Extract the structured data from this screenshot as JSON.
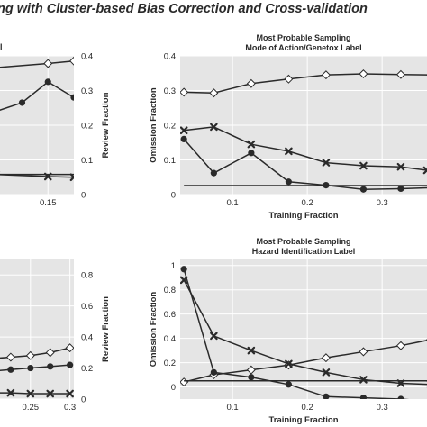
{
  "figure": {
    "title": "ng with Cluster-based Bias Correction and Cross-validation",
    "stray_label": "l"
  },
  "colors": {
    "plot_bg": "#e5e5e5",
    "grid": "#ffffff",
    "ink": "#2a2a2a"
  },
  "chart_data": [
    {
      "id": "top_left",
      "type": "line",
      "title": "",
      "xlabel": "",
      "ylabel": "",
      "y2label": "Review Fraction",
      "xlim": [
        0.095,
        0.175
      ],
      "y2lim": [
        0,
        0.4
      ],
      "x_ticks": [
        "0.15"
      ],
      "y2_ticks": [
        "0",
        "0.1",
        "0.2",
        "0.3",
        "0.4"
      ],
      "grid": true,
      "series": [
        {
          "marker": "diamond",
          "axis": "right",
          "x": [
            0.095,
            0.1,
            0.15,
            0.175
          ],
          "y": [
            0.37,
            0.366,
            0.378,
            0.385
          ]
        },
        {
          "marker": "circle",
          "axis": "right",
          "x": [
            0.095,
            0.1,
            0.125,
            0.15,
            0.175
          ],
          "y": [
            0.22,
            0.24,
            0.265,
            0.325,
            0.28
          ]
        },
        {
          "marker": "x",
          "axis": "right",
          "x": [
            0.095,
            0.1,
            0.15,
            0.175
          ],
          "y": [
            0.06,
            0.058,
            0.052,
            0.05
          ]
        },
        {
          "marker": "none",
          "axis": "right",
          "x": [
            0.095,
            0.175
          ],
          "y": [
            0.058,
            0.058
          ]
        }
      ]
    },
    {
      "id": "top_right",
      "type": "line",
      "title": "Most Probable Sampling",
      "subtitle": "Mode of Action/Genetox Label",
      "xlabel": "Training Fraction",
      "ylabel": "Omission Fraction",
      "xlim": [
        0.03,
        0.36
      ],
      "ylim": [
        0,
        0.4
      ],
      "x_ticks": [
        "0.1",
        "0.2",
        "0.3"
      ],
      "y_ticks": [
        "0",
        "0.1",
        "0.2",
        "0.3",
        "0.4"
      ],
      "grid": true,
      "series": [
        {
          "marker": "diamond",
          "x": [
            0.035,
            0.075,
            0.125,
            0.175,
            0.225,
            0.275,
            0.325,
            0.365
          ],
          "y": [
            0.295,
            0.293,
            0.32,
            0.333,
            0.345,
            0.348,
            0.346,
            0.345
          ]
        },
        {
          "marker": "x",
          "x": [
            0.035,
            0.075,
            0.125,
            0.175,
            0.225,
            0.275,
            0.325,
            0.36
          ],
          "y": [
            0.185,
            0.195,
            0.145,
            0.125,
            0.092,
            0.083,
            0.08,
            0.07
          ]
        },
        {
          "marker": "circle",
          "x": [
            0.035,
            0.075,
            0.125,
            0.175,
            0.225,
            0.275,
            0.325,
            0.365
          ],
          "y": [
            0.16,
            0.062,
            0.12,
            0.037,
            0.027,
            0.015,
            0.017,
            0.02
          ]
        },
        {
          "marker": "none",
          "x": [
            0.035,
            0.365
          ],
          "y": [
            0.026,
            0.026
          ]
        }
      ]
    },
    {
      "id": "bottom_left",
      "type": "line",
      "title": "",
      "xlabel": "",
      "ylabel": "",
      "y2label": "Review Fraction",
      "xlim": [
        0.2,
        0.305
      ],
      "y2lim": [
        0,
        0.9
      ],
      "x_ticks": [
        "0.25",
        "0.3"
      ],
      "y2_ticks": [
        "0",
        "0.2",
        "0.4",
        "0.6",
        "0.8"
      ],
      "grid": true,
      "series": [
        {
          "marker": "diamond",
          "axis": "right",
          "x": [
            0.2,
            0.225,
            0.25,
            0.275,
            0.3
          ],
          "y": [
            0.26,
            0.27,
            0.28,
            0.3,
            0.33
          ]
        },
        {
          "marker": "circle",
          "axis": "right",
          "x": [
            0.2,
            0.225,
            0.25,
            0.275,
            0.3
          ],
          "y": [
            0.18,
            0.19,
            0.2,
            0.21,
            0.22
          ]
        },
        {
          "marker": "x",
          "axis": "right",
          "x": [
            0.2,
            0.225,
            0.25,
            0.275,
            0.3
          ],
          "y": [
            0.04,
            0.04,
            0.035,
            0.035,
            0.035
          ]
        }
      ]
    },
    {
      "id": "bottom_right",
      "type": "line",
      "title": "Most Probable Sampling",
      "subtitle": "Hazard Identification Label",
      "xlabel": "Training Fraction",
      "ylabel": "Omission Fraction",
      "xlim": [
        0.03,
        0.36
      ],
      "ylim": [
        -0.1,
        1.05
      ],
      "x_ticks": [
        "0.1",
        "0.2",
        "0.3"
      ],
      "y_ticks": [
        "0",
        "0.2",
        "0.4",
        "0.6",
        "0.8",
        "1"
      ],
      "grid": true,
      "series": [
        {
          "marker": "diamond",
          "x": [
            0.035,
            0.075,
            0.125,
            0.175,
            0.225,
            0.275,
            0.325,
            0.365
          ],
          "y": [
            0.04,
            0.1,
            0.14,
            0.18,
            0.24,
            0.29,
            0.34,
            0.39
          ]
        },
        {
          "marker": "x",
          "x": [
            0.035,
            0.075,
            0.125,
            0.175,
            0.225,
            0.275,
            0.325,
            0.365
          ],
          "y": [
            0.88,
            0.42,
            0.3,
            0.19,
            0.12,
            0.06,
            0.03,
            0.02
          ]
        },
        {
          "marker": "circle",
          "x": [
            0.035,
            0.075,
            0.125,
            0.175,
            0.225,
            0.275,
            0.325,
            0.365
          ],
          "y": [
            0.97,
            0.12,
            0.08,
            0.02,
            -0.08,
            -0.09,
            -0.1,
            -0.12
          ]
        },
        {
          "marker": "none",
          "x": [
            0.035,
            0.365
          ],
          "y": [
            0.05,
            0.05
          ]
        }
      ]
    }
  ]
}
